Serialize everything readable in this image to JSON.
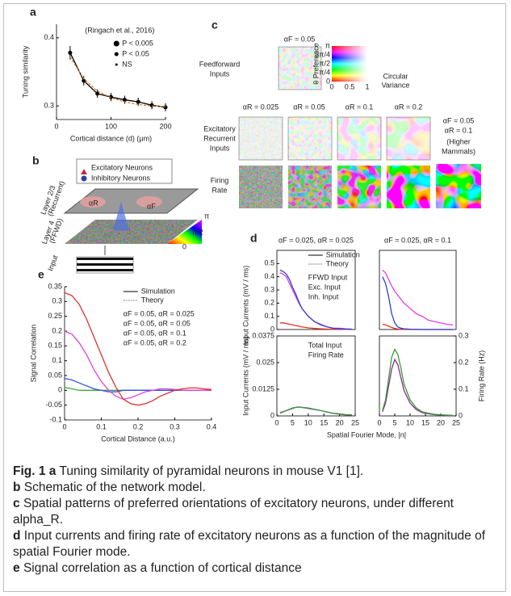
{
  "chart_data": [
    {
      "type": "line",
      "panel": "a",
      "annotation": "(Ringach et al., 2016)",
      "x_label": "Cortical distance (d) (μm)",
      "y_label": "Tuning similarity",
      "marker_legend": [
        "P < 0.005",
        "P < 0.05",
        "NS"
      ],
      "x": [
        25,
        50,
        75,
        100,
        125,
        150,
        175,
        200
      ],
      "series": [
        {
          "color": "#000000",
          "markers": true,
          "values": [
            0.378,
            0.337,
            0.318,
            0.313,
            0.309,
            0.306,
            0.301,
            0.298
          ],
          "errors": [
            0.01,
            0.007,
            0.006,
            0.006,
            0.006,
            0.006,
            0.006,
            0.006
          ]
        },
        {
          "color": "#e07a2a",
          "dash": true,
          "values": [
            0.372,
            0.34,
            0.322,
            0.312,
            0.306,
            0.302,
            0.3,
            0.299
          ]
        }
      ],
      "xlim": [
        0,
        200
      ],
      "xticks": [
        0,
        100,
        200
      ],
      "ylim": [
        0.28,
        0.42
      ],
      "yticks": [
        0.3,
        0.4
      ]
    },
    {
      "type": "line",
      "panel": "e",
      "x_label": "Cortical Distance (a.u.)",
      "y_label": "Signal Correlation",
      "style_legend": [
        "Simulation",
        "Theory"
      ],
      "legend": "upper right",
      "x": [
        0,
        0.02,
        0.04,
        0.06,
        0.08,
        0.1,
        0.12,
        0.14,
        0.16,
        0.18,
        0.2,
        0.22,
        0.24,
        0.26,
        0.28,
        0.3,
        0.32,
        0.34,
        0.36,
        0.38,
        0.4
      ],
      "series": [
        {
          "name": "αF = 0.05, αR = 0.025",
          "color": "#3aaa3a",
          "values": [
            0.01,
            0.005,
            0,
            0,
            0,
            0,
            0,
            0,
            0,
            0,
            0,
            0,
            0,
            0,
            0,
            0,
            0,
            0,
            0,
            0,
            0
          ]
        },
        {
          "name": "αF = 0.05, αR = 0.05",
          "color": "#3050e0",
          "values": [
            0.04,
            0.035,
            0.025,
            0.015,
            0.005,
            0,
            -0.005,
            -0.005,
            0,
            0,
            0,
            0,
            0,
            0,
            0,
            0,
            0,
            0,
            0,
            0,
            0
          ]
        },
        {
          "name": "αF = 0.05, αR = 0.1",
          "color": "#e040e0",
          "values": [
            0.2,
            0.19,
            0.16,
            0.12,
            0.07,
            0.03,
            0,
            -0.02,
            -0.03,
            -0.025,
            -0.015,
            -0.005,
            0,
            0.005,
            0.005,
            0.003,
            0,
            0,
            0,
            0,
            0
          ]
        },
        {
          "name": "αF = 0.05, αR = 0.2",
          "color": "#e03030",
          "values": [
            0.33,
            0.32,
            0.29,
            0.24,
            0.18,
            0.12,
            0.06,
            0.01,
            -0.03,
            -0.045,
            -0.05,
            -0.045,
            -0.035,
            -0.02,
            -0.01,
            0,
            0.005,
            0.008,
            0.008,
            0.005,
            0.003
          ]
        }
      ],
      "xlim": [
        0,
        0.4
      ],
      "xticks": [
        0,
        0.1,
        0.2,
        0.3,
        0.4
      ],
      "ylim": [
        -0.1,
        0.35
      ],
      "yticks": [
        -0.1,
        -0.05,
        0,
        0.05,
        0.1,
        0.15,
        0.2,
        0.25,
        0.3,
        0.35
      ]
    },
    {
      "type": "line",
      "panel": "d",
      "title": "αF = 0.025, αR = 0.025",
      "y_label": "Input Currents (mV / ms)",
      "frame": true,
      "style_legend": [
        "Simulation",
        "Theory"
      ],
      "legend": "upper right",
      "x": [
        1,
        2,
        3,
        4,
        5,
        6,
        7,
        8,
        10,
        12,
        14,
        16,
        18,
        20,
        22,
        24
      ],
      "series": [
        {
          "name": "FFWD Input",
          "color": "#e040e0",
          "values": [
            0.43,
            0.42,
            0.4,
            0.35,
            0.3,
            0.25,
            0.2,
            0.16,
            0.1,
            0.06,
            0.04,
            0.02,
            0.01,
            0.01,
            0.005,
            0.003
          ]
        },
        {
          "name": "Exc. Input",
          "color": "#e03020",
          "values": [
            0.05,
            0.05,
            0.045,
            0.04,
            0.035,
            0.03,
            0.025,
            0.02,
            0.012,
            0.008,
            0.005,
            0.003,
            0.002,
            0.001,
            0.001,
            0.001
          ]
        },
        {
          "name": "Inh. Input",
          "color": "#3040d0",
          "values": [
            0.45,
            0.44,
            0.42,
            0.38,
            0.32,
            0.27,
            0.21,
            0.16,
            0.1,
            0.06,
            0.035,
            0.02,
            0.01,
            0.005,
            0.003,
            0.002
          ]
        }
      ],
      "xlim": [
        0,
        25
      ],
      "ylim": [
        0,
        0.6
      ],
      "yticks": [
        0,
        0.1,
        0.2,
        0.3,
        0.4,
        0.5
      ]
    },
    {
      "type": "line",
      "title": "αF = 0.025, αR = 0.1",
      "frame": true,
      "x": [
        1,
        2,
        3,
        4,
        5,
        6,
        7,
        8,
        10,
        12,
        14,
        16,
        18,
        20,
        22,
        24
      ],
      "series": [
        {
          "color": "#e040e0",
          "values": [
            0.45,
            0.43,
            0.38,
            0.33,
            0.29,
            0.26,
            0.23,
            0.2,
            0.16,
            0.12,
            0.1,
            0.07,
            0.06,
            0.05,
            0.04,
            0.035
          ]
        },
        {
          "color": "#e03020",
          "values": [
            0.04,
            0.035,
            0.025,
            0.015,
            0.008,
            0.004,
            0.002,
            0.001,
            0,
            0,
            0,
            0,
            0,
            0,
            0,
            0
          ]
        },
        {
          "color": "#3040d0",
          "values": [
            0.4,
            0.35,
            0.25,
            0.12,
            0.05,
            0.02,
            0.01,
            0.005,
            0.002,
            0.001,
            0,
            0,
            0,
            0,
            0,
            0
          ]
        }
      ],
      "xlim": [
        0,
        25
      ],
      "ylim": [
        0,
        0.6
      ]
    },
    {
      "type": "line",
      "y_label": "Input Currents (mV / ms)",
      "x_label": "Spatial Fourier Mode, |n|",
      "frame": true,
      "legend": "upper right",
      "x": [
        1,
        2,
        3,
        4,
        5,
        6,
        7,
        8,
        10,
        12,
        14,
        16,
        18,
        20,
        22,
        24
      ],
      "series": [
        {
          "name": "Total Input",
          "color": "#8a2b8a",
          "values": [
            0.0015,
            0.002,
            0.0025,
            0.003,
            0.0035,
            0.004,
            0.0042,
            0.004,
            0.0035,
            0.003,
            0.0025,
            0.0018,
            0.0012,
            0.0008,
            0.0005,
            0.0003
          ]
        },
        {
          "name": "Firing Rate",
          "color": "#3a9a3a",
          "axis": "y2",
          "values": [
            0.01,
            0.015,
            0.02,
            0.025,
            0.03,
            0.032,
            0.033,
            0.032,
            0.03,
            0.025,
            0.02,
            0.015,
            0.01,
            0.008,
            0.005,
            0.004
          ]
        }
      ],
      "xlim": [
        0,
        25
      ],
      "xticks": [
        0,
        5,
        10,
        15,
        20,
        25
      ],
      "ylim": [
        0,
        0.0375
      ],
      "yticks": [
        0,
        0.0125,
        0.025,
        0.0375
      ],
      "y2lim": [
        0,
        0.3
      ]
    },
    {
      "type": "line",
      "y2_label": "Firing Rate (Hz)",
      "frame": true,
      "x": [
        1,
        2,
        3,
        4,
        5,
        6,
        7,
        8,
        10,
        12,
        14,
        16,
        18,
        20,
        22,
        24
      ],
      "series": [
        {
          "color": "#8a2b8a",
          "values": [
            0.002,
            0.006,
            0.014,
            0.022,
            0.0265,
            0.024,
            0.018,
            0.012,
            0.006,
            0.003,
            0.0015,
            0.001,
            0.0006,
            0.0004,
            0.0003,
            0.0002
          ]
        },
        {
          "color": "#3a9a3a",
          "axis": "y2",
          "values": [
            0.02,
            0.06,
            0.14,
            0.22,
            0.25,
            0.23,
            0.18,
            0.12,
            0.06,
            0.03,
            0.015,
            0.01,
            0.006,
            0.004,
            0.003,
            0.002
          ]
        }
      ],
      "xlim": [
        0,
        25
      ],
      "xticks": [
        0,
        5,
        10,
        15,
        20,
        25
      ],
      "ylim": [
        0,
        0.0375
      ],
      "y2lim": [
        0,
        0.3
      ],
      "y2ticks": [
        0,
        0.1,
        0.2,
        0.3
      ]
    }
  ],
  "schematic": {
    "panel": "b",
    "legend": [
      "Excitatory Neurons",
      "Inhibitory Neurons"
    ],
    "layer_top": [
      "Layer 2/3",
      "(Recurrent)"
    ],
    "layer_bottom": [
      "Layer 4",
      "(FFWD)"
    ],
    "input": "Input",
    "alpha_r": "αR",
    "alpha_f": "αF",
    "colorbar": [
      "π",
      "π/2",
      "0"
    ]
  },
  "patterns": {
    "panel": "c",
    "ff_title": "αF = 0.05",
    "ff_row": [
      "Feedforward",
      "Inputs"
    ],
    "exc_row": [
      "Excitatory",
      "Recurrent",
      "Inputs"
    ],
    "rate_row": [
      "Firing",
      "Rate"
    ],
    "columns": [
      "αR = 0.025",
      "αR = 0.05",
      "αR = 0.1",
      "αR = 0.2"
    ],
    "mammals": [
      "αF = 0.05",
      "αR = 0.1",
      "(Higher",
      "Mammals)"
    ],
    "wheel_y": [
      "π",
      "3π/4",
      "π/2",
      "π/4",
      "0"
    ],
    "wheel_x": [
      "0",
      "0.5",
      "1"
    ],
    "wheel_y_title": "θ Preference",
    "wheel_x_title": [
      "Circular",
      "Variance"
    ]
  },
  "caption": {
    "label": "Fig. 1",
    "parts": [
      {
        "letter": "a",
        "text": "Tuning similarity of pyramidal neurons in mouse V1 [1]."
      },
      {
        "letter": "b",
        "text": "Schematic of the network model."
      },
      {
        "letter": "c",
        "text": "Spatial patterns of preferred orientations of excitatory neurons, under different alpha_R."
      },
      {
        "letter": "d",
        "text": "Input currents and firing rate of excitatory neurons as a function of the magnitude of spatial Fourier mode."
      },
      {
        "letter": "e",
        "text": "Signal correlation as a function of cortical distance"
      }
    ]
  }
}
